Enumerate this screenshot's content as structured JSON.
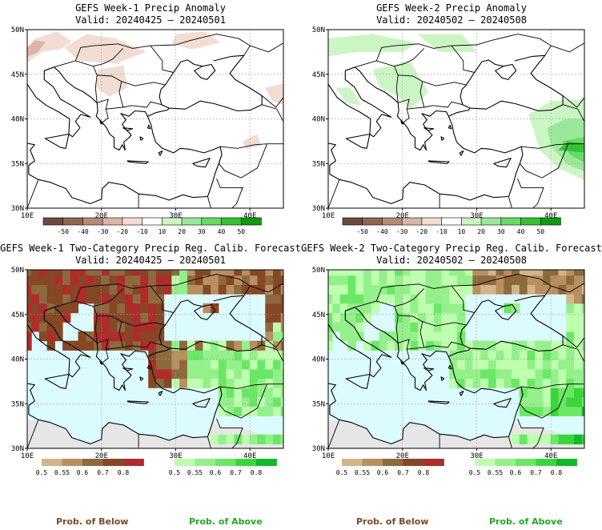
{
  "panels": [
    {
      "title": "GEFS Week-1 Precip Anomaly",
      "valid": "Valid: 20240425 – 20240501"
    },
    {
      "title": "GEFS Week-2 Precip Anomaly",
      "valid": "Valid: 20240502 – 20240508"
    },
    {
      "title": "GEFS Week-1 Two-Category Precip Reg. Calib. Forecast",
      "valid": "Valid: 20240425 – 20240501"
    },
    {
      "title": "GEFS Week-2 Two-Category Precip Reg. Calib. Forecast",
      "valid": "Valid: 20240502 – 20240508"
    }
  ],
  "lat_labels": [
    "30N",
    "35N",
    "40N",
    "45N",
    "50N"
  ],
  "lon_labels": [
    "10E",
    "20E",
    "30E",
    "40E"
  ],
  "anomaly_colorbar": {
    "ticks": [
      "-50",
      "-40",
      "-30",
      "-20",
      "-10",
      "10",
      "20",
      "30",
      "40",
      "50"
    ],
    "colors": [
      "#6e4a3a",
      "#8f6652",
      "#b58a78",
      "#d9b6a8",
      "#f2ddd4",
      "#ffffff",
      "#ccf5c4",
      "#9be89a",
      "#66d966",
      "#33c233",
      "#119911"
    ]
  },
  "prob_below": {
    "ticks": [
      "0.5",
      "0.55",
      "0.6",
      "0.7",
      "0.8"
    ],
    "colors": [
      "#d2b589",
      "#b98e61",
      "#8c6a3e",
      "#864726",
      "#b02b2b"
    ]
  },
  "prob_above": {
    "ticks": [
      "0.5",
      "0.55",
      "0.6",
      "0.7",
      "0.8"
    ],
    "colors": [
      "#bfffb0",
      "#93f08a",
      "#6ae865",
      "#38d63a",
      "#10b82a"
    ]
  },
  "footer": {
    "below_label": "Prob. of Below",
    "above_label": "Prob. of Above",
    "below_color": "#7a4a2a",
    "above_color": "#22aa22"
  },
  "map_colors": {
    "sea_prob": "#dcfbff",
    "missing": "#e6e6e6",
    "anomaly_bg": "#ffffff"
  }
}
